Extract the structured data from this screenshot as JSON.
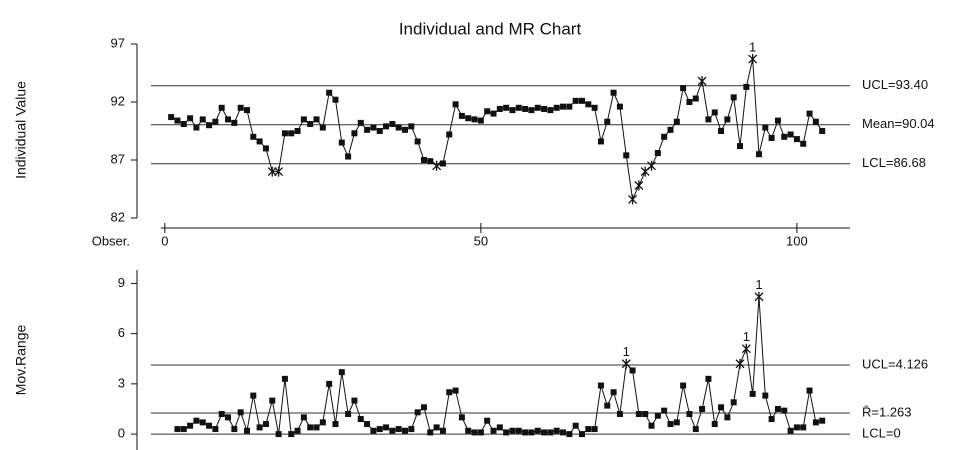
{
  "chart_data": [
    {
      "type": "line",
      "title": "Individual and MR Chart",
      "ylabel": "Individual Value",
      "xlabel": "Obser.",
      "x": [
        1,
        2,
        3,
        4,
        5,
        6,
        7,
        8,
        9,
        10,
        11,
        12,
        13,
        14,
        15,
        16,
        17,
        18,
        19,
        20,
        21,
        22,
        23,
        24,
        25,
        26,
        27,
        28,
        29,
        30,
        31,
        32,
        33,
        34,
        35,
        36,
        37,
        38,
        39,
        40,
        41,
        42,
        43,
        44,
        45,
        46,
        47,
        48,
        49,
        50,
        51,
        52,
        53,
        54,
        55,
        56,
        57,
        58,
        59,
        60,
        61,
        62,
        63,
        64,
        65,
        66,
        67,
        68,
        69,
        70,
        71,
        72,
        73,
        74,
        75,
        76,
        77,
        78,
        79,
        80,
        81,
        82,
        83,
        84,
        85,
        86,
        87,
        88,
        89,
        90,
        91,
        92,
        93,
        94,
        95,
        96,
        97,
        98,
        99,
        100,
        101,
        102,
        103,
        104
      ],
      "series": [
        {
          "name": "Individual Value",
          "color": "#111111",
          "values": [
            90.7,
            90.4,
            90.1,
            90.6,
            89.8,
            90.5,
            90.0,
            90.3,
            91.5,
            90.5,
            90.2,
            91.5,
            91.3,
            89.0,
            88.6,
            88.0,
            86.0,
            86.0,
            89.3,
            89.3,
            89.5,
            90.5,
            90.1,
            90.5,
            89.8,
            92.8,
            92.2,
            88.5,
            87.3,
            89.3,
            90.2,
            89.6,
            89.8,
            89.5,
            89.9,
            90.1,
            89.8,
            89.6,
            89.9,
            88.6,
            87.0,
            86.9,
            86.5,
            86.7,
            89.2,
            91.8,
            90.8,
            90.6,
            90.5,
            90.4,
            91.2,
            91.0,
            91.4,
            91.5,
            91.3,
            91.5,
            91.4,
            91.3,
            91.5,
            91.4,
            91.3,
            91.5,
            91.6,
            91.6,
            92.1,
            92.1,
            91.8,
            91.5,
            88.6,
            90.3,
            92.8,
            91.6,
            87.4,
            83.6,
            84.8,
            86.0,
            86.5,
            87.6,
            89.0,
            89.6,
            90.3,
            93.2,
            92.0,
            92.3,
            93.8,
            90.5,
            91.1,
            89.5,
            90.5,
            92.4,
            88.2,
            93.3,
            95.7,
            87.5,
            89.8,
            88.9,
            90.4,
            89.0,
            89.2,
            88.8,
            88.4,
            91.0,
            90.3,
            89.5
          ]
        }
      ],
      "control_lines": [
        {
          "value": 93.4,
          "label": "UCL=93.40"
        },
        {
          "value": 90.04,
          "label": "Mean=90.04"
        },
        {
          "value": 86.68,
          "label": "LCL=86.68"
        }
      ],
      "annotations": [
        {
          "x": 93,
          "label": "1"
        }
      ],
      "xlim": [
        -4.4,
        108.4
      ],
      "xticks": [
        0,
        50,
        100
      ],
      "ylim": [
        82,
        97
      ],
      "yticks": [
        82,
        87,
        92,
        97
      ]
    },
    {
      "type": "line",
      "ylabel": "Mov.Range",
      "x": [
        1,
        2,
        3,
        4,
        5,
        6,
        7,
        8,
        9,
        10,
        11,
        12,
        13,
        14,
        15,
        16,
        17,
        18,
        19,
        20,
        21,
        22,
        23,
        24,
        25,
        26,
        27,
        28,
        29,
        30,
        31,
        32,
        33,
        34,
        35,
        36,
        37,
        38,
        39,
        40,
        41,
        42,
        43,
        44,
        45,
        46,
        47,
        48,
        49,
        50,
        51,
        52,
        53,
        54,
        55,
        56,
        57,
        58,
        59,
        60,
        61,
        62,
        63,
        64,
        65,
        66,
        67,
        68,
        69,
        70,
        71,
        72,
        73,
        74,
        75,
        76,
        77,
        78,
        79,
        80,
        81,
        82,
        83,
        84,
        85,
        86,
        87,
        88,
        89,
        90,
        91,
        92,
        93,
        94,
        95,
        96,
        97,
        98,
        99,
        100,
        101,
        102,
        103,
        104
      ],
      "series": [
        {
          "name": "Mov.Range",
          "color": "#111111",
          "values": [
            null,
            0.3,
            0.3,
            0.5,
            0.8,
            0.7,
            0.5,
            0.3,
            1.2,
            1.0,
            0.3,
            1.3,
            0.2,
            2.3,
            0.4,
            0.6,
            2.0,
            0.0,
            3.3,
            0.0,
            0.2,
            1.0,
            0.4,
            0.4,
            0.7,
            3.0,
            0.6,
            3.7,
            1.2,
            2.0,
            0.9,
            0.6,
            0.2,
            0.3,
            0.4,
            0.2,
            0.3,
            0.2,
            0.3,
            1.3,
            1.6,
            0.1,
            0.4,
            0.2,
            2.5,
            2.6,
            1.0,
            0.2,
            0.1,
            0.1,
            0.8,
            0.2,
            0.4,
            0.1,
            0.2,
            0.2,
            0.1,
            0.1,
            0.2,
            0.1,
            0.1,
            0.2,
            0.1,
            0.0,
            0.5,
            0.0,
            0.3,
            0.3,
            2.9,
            1.7,
            2.5,
            1.2,
            4.2,
            3.8,
            1.2,
            1.2,
            0.5,
            1.1,
            1.4,
            0.6,
            0.7,
            2.9,
            1.2,
            0.3,
            1.5,
            3.3,
            0.6,
            1.6,
            1.0,
            1.9,
            4.2,
            5.1,
            2.4,
            8.2,
            2.3,
            0.9,
            1.5,
            1.4,
            0.2,
            0.4,
            0.4,
            2.6,
            0.7,
            0.8
          ]
        }
      ],
      "control_lines": [
        {
          "value": 4.126,
          "label": "UCL=4.126"
        },
        {
          "value": 1.263,
          "label": "R̄=1.263"
        },
        {
          "value": 0,
          "label": "LCL=0"
        }
      ],
      "annotations": [
        {
          "x": 73,
          "label": "1"
        },
        {
          "x": 92,
          "label": "1"
        },
        {
          "x": 94,
          "label": "1"
        }
      ],
      "xlim": [
        -4.4,
        108.4
      ],
      "ylim": [
        -0.95,
        9.8
      ],
      "yticks": [
        0,
        3,
        6,
        9
      ]
    }
  ]
}
